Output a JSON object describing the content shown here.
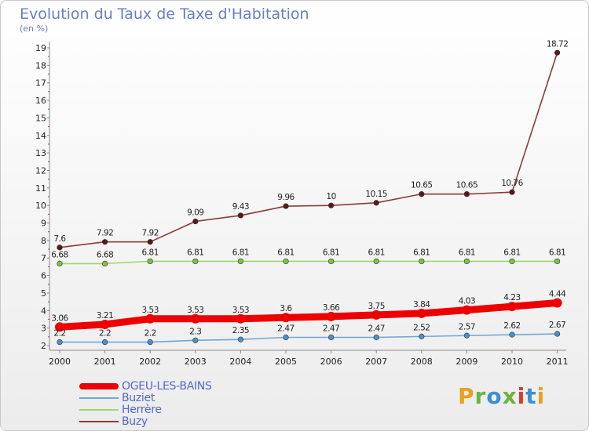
{
  "title": "Evolution du Taux de Taxe d'Habitation",
  "subtitle": "(en %)",
  "logo": {
    "text": "Proxiti",
    "colors": [
      "#e8a020",
      "#6cb33e",
      "#3a8fd0",
      "#6cb33e",
      "#d83a2e",
      "#3a8fd0",
      "#e8a020"
    ]
  },
  "chart_data": {
    "type": "line",
    "x": [
      "2000",
      "2001",
      "2002",
      "2003",
      "2004",
      "2005",
      "2006",
      "2007",
      "2008",
      "2009",
      "2010",
      "2011"
    ],
    "ylim": [
      2,
      19
    ],
    "yticks": [
      2,
      3,
      4,
      5,
      6,
      7,
      8,
      9,
      10,
      11,
      12,
      13,
      14,
      15,
      16,
      17,
      18,
      19
    ],
    "grid": false,
    "legend_position": "bottom-left",
    "series": [
      {
        "name": "OGEU-LES-BAINS",
        "color": "#ee0000",
        "marker": "#ee0000",
        "thick": true,
        "values": [
          3.06,
          3.21,
          3.53,
          3.53,
          3.53,
          3.6,
          3.66,
          3.75,
          3.84,
          4.03,
          4.23,
          4.44
        ],
        "labels": [
          "3.06",
          "3.21",
          "3.53",
          "3.53",
          "3.53",
          "3.6",
          "3.66",
          "3.75",
          "3.84",
          "4.03",
          "4.23",
          "4.44"
        ]
      },
      {
        "name": "Buziet",
        "color": "#6fa8d8",
        "marker": "#4a90d0",
        "values": [
          2.2,
          2.2,
          2.2,
          2.3,
          2.35,
          2.47,
          2.47,
          2.47,
          2.52,
          2.57,
          2.62,
          2.67
        ],
        "labels": [
          "2.2",
          "2.2",
          "2.2",
          "2.3",
          "2.35",
          "2.47",
          "2.47",
          "2.47",
          "2.52",
          "2.57",
          "2.62",
          "2.67"
        ]
      },
      {
        "name": "Herrère",
        "color": "#9ed86a",
        "marker": "#7cc444",
        "values": [
          6.68,
          6.68,
          6.81,
          6.81,
          6.81,
          6.81,
          6.81,
          6.81,
          6.81,
          6.81,
          6.81,
          6.81
        ],
        "labels": [
          "6.68",
          "6.68",
          "6.81",
          "6.81",
          "6.81",
          "6.81",
          "6.81",
          "6.81",
          "6.81",
          "6.81",
          "6.81",
          "6.81"
        ]
      },
      {
        "name": "Buzy",
        "color": "#8a3a3a",
        "marker": "#5a1818",
        "values": [
          7.6,
          7.92,
          7.92,
          9.09,
          9.43,
          9.96,
          10,
          10.15,
          10.65,
          10.65,
          10.76,
          18.72
        ],
        "labels": [
          "7.6",
          "7.92",
          "7.92",
          "9.09",
          "9.43",
          "9.96",
          "10",
          "10.15",
          "10.65",
          "10.65",
          "10.76",
          "18.72"
        ]
      }
    ]
  }
}
